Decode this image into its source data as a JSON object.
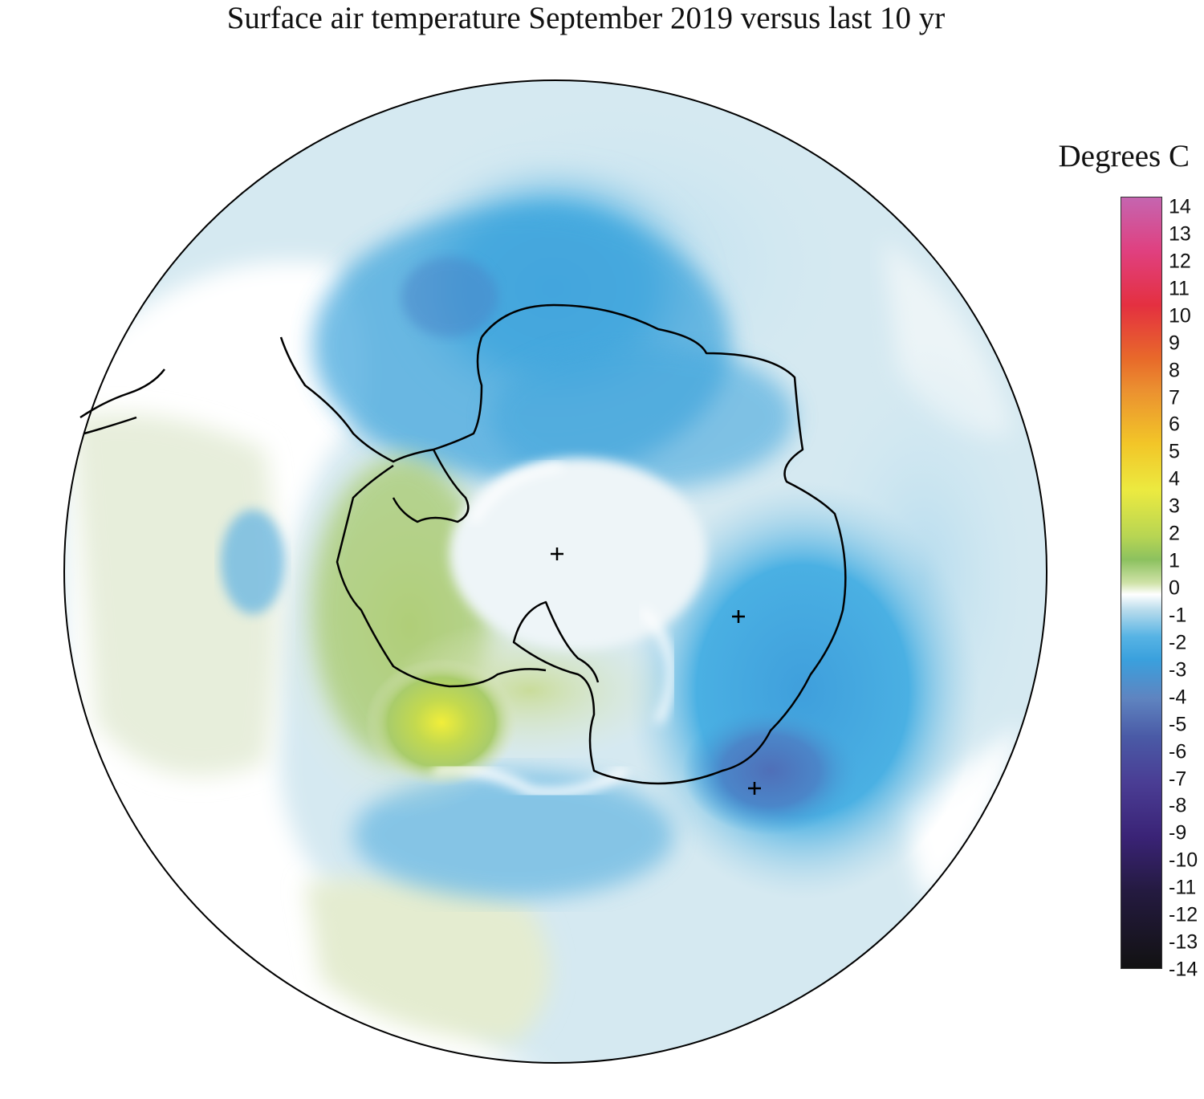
{
  "title": "Surface air temperature September 2019 versus last 10 yr",
  "colorbar": {
    "label": "Degrees C",
    "ticks": [
      "14",
      "13",
      "12",
      "11",
      "10",
      "9",
      "8",
      "7",
      "6",
      "5",
      "4",
      "3",
      "2",
      "1",
      "0",
      "-1",
      "-2",
      "-3",
      "-4",
      "-5",
      "-6",
      "-7",
      "-8",
      "-9",
      "-10",
      "-11",
      "-12",
      "-13",
      "-14"
    ],
    "range": [
      -14,
      14
    ]
  },
  "map": {
    "projection": "south polar stereographic",
    "region": "Antarctica and Southern Ocean",
    "colors": {
      "cold_strong": "#4f78bd",
      "cold": "#45a7dd",
      "cool": "#a9d4e8",
      "neutral": "#ffffff",
      "warm_weak": "#dde6c4",
      "warm": "#a2c863",
      "warm_strong": "#eaea42"
    },
    "features": [
      {
        "name": "pole-marker",
        "symbol": "+"
      },
      {
        "name": "station-marker",
        "symbol": "+"
      },
      {
        "name": "station-marker",
        "symbol": "+"
      }
    ]
  }
}
